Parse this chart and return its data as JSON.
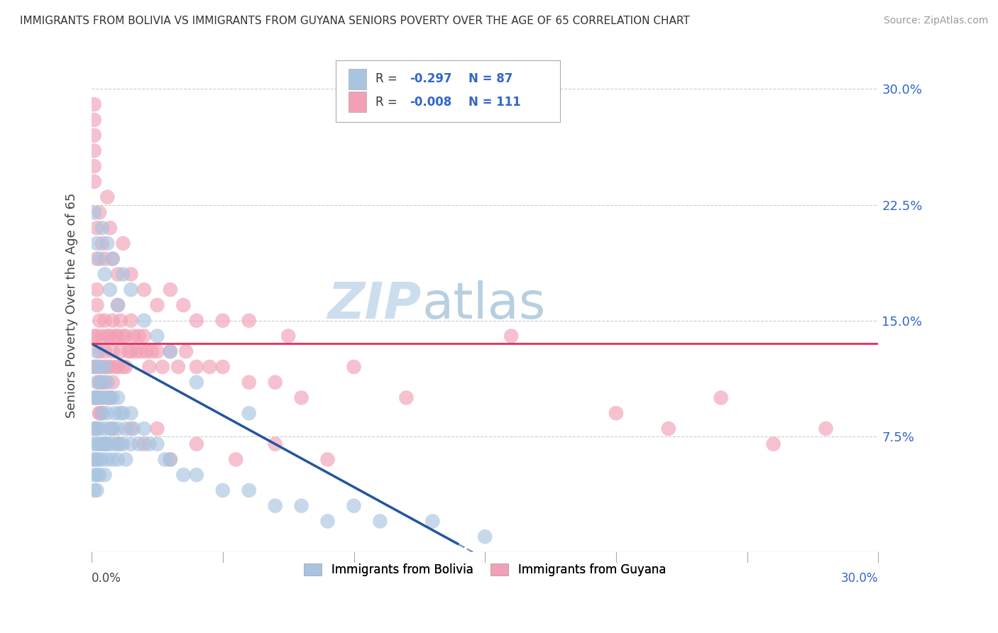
{
  "title": "IMMIGRANTS FROM BOLIVIA VS IMMIGRANTS FROM GUYANA SENIORS POVERTY OVER THE AGE OF 65 CORRELATION CHART",
  "source": "Source: ZipAtlas.com",
  "ylabel": "Seniors Poverty Over the Age of 65",
  "xlim": [
    0.0,
    0.3
  ],
  "ylim": [
    0.0,
    0.32
  ],
  "yticks": [
    0.0,
    0.075,
    0.15,
    0.225,
    0.3
  ],
  "ytick_labels": [
    "",
    "7.5%",
    "15.0%",
    "22.5%",
    "30.0%"
  ],
  "bolivia_R": -0.297,
  "bolivia_N": 87,
  "guyana_R": -0.008,
  "guyana_N": 111,
  "bolivia_color": "#a8c4e0",
  "guyana_color": "#f2a0b5",
  "bolivia_line_color": "#2255a0",
  "guyana_line_color": "#e03060",
  "bolivia_line_start": 0.0,
  "bolivia_line_end": 0.14,
  "bolivia_line_y_start": 0.135,
  "bolivia_line_y_end": 0.005,
  "guyana_line_y_start": 0.135,
  "guyana_line_y_end": 0.135,
  "watermark_color": "#ccdded",
  "bolivia_scatter_x": [
    0.001,
    0.001,
    0.001,
    0.001,
    0.001,
    0.001,
    0.001,
    0.002,
    0.002,
    0.002,
    0.002,
    0.002,
    0.002,
    0.002,
    0.002,
    0.003,
    0.003,
    0.003,
    0.003,
    0.003,
    0.003,
    0.004,
    0.004,
    0.004,
    0.004,
    0.005,
    0.005,
    0.005,
    0.005,
    0.005,
    0.006,
    0.006,
    0.006,
    0.006,
    0.007,
    0.007,
    0.007,
    0.008,
    0.008,
    0.008,
    0.009,
    0.009,
    0.01,
    0.01,
    0.01,
    0.011,
    0.011,
    0.012,
    0.012,
    0.013,
    0.013,
    0.015,
    0.015,
    0.016,
    0.018,
    0.02,
    0.022,
    0.025,
    0.028,
    0.03,
    0.035,
    0.04,
    0.05,
    0.06,
    0.07,
    0.08,
    0.09,
    0.1,
    0.11,
    0.13,
    0.15,
    0.001,
    0.002,
    0.003,
    0.004,
    0.005,
    0.006,
    0.007,
    0.008,
    0.01,
    0.012,
    0.015,
    0.02,
    0.025,
    0.03,
    0.04,
    0.06
  ],
  "bolivia_scatter_y": [
    0.12,
    0.1,
    0.08,
    0.07,
    0.06,
    0.05,
    0.04,
    0.13,
    0.11,
    0.1,
    0.08,
    0.07,
    0.06,
    0.05,
    0.04,
    0.12,
    0.1,
    0.08,
    0.07,
    0.06,
    0.05,
    0.11,
    0.09,
    0.07,
    0.06,
    0.12,
    0.1,
    0.08,
    0.07,
    0.05,
    0.11,
    0.09,
    0.07,
    0.06,
    0.1,
    0.08,
    0.07,
    0.1,
    0.08,
    0.06,
    0.09,
    0.07,
    0.1,
    0.08,
    0.06,
    0.09,
    0.07,
    0.09,
    0.07,
    0.08,
    0.06,
    0.09,
    0.07,
    0.08,
    0.07,
    0.08,
    0.07,
    0.07,
    0.06,
    0.06,
    0.05,
    0.05,
    0.04,
    0.04,
    0.03,
    0.03,
    0.02,
    0.03,
    0.02,
    0.02,
    0.01,
    0.22,
    0.2,
    0.19,
    0.21,
    0.18,
    0.2,
    0.17,
    0.19,
    0.16,
    0.18,
    0.17,
    0.15,
    0.14,
    0.13,
    0.11,
    0.09
  ],
  "guyana_scatter_x": [
    0.001,
    0.001,
    0.001,
    0.001,
    0.001,
    0.002,
    0.002,
    0.002,
    0.002,
    0.003,
    0.003,
    0.003,
    0.003,
    0.004,
    0.004,
    0.004,
    0.005,
    0.005,
    0.005,
    0.006,
    0.006,
    0.006,
    0.007,
    0.007,
    0.007,
    0.008,
    0.008,
    0.008,
    0.009,
    0.009,
    0.01,
    0.01,
    0.01,
    0.011,
    0.011,
    0.012,
    0.012,
    0.013,
    0.013,
    0.014,
    0.015,
    0.015,
    0.016,
    0.017,
    0.018,
    0.019,
    0.02,
    0.021,
    0.022,
    0.023,
    0.025,
    0.027,
    0.03,
    0.033,
    0.036,
    0.04,
    0.045,
    0.05,
    0.06,
    0.07,
    0.08,
    0.1,
    0.12,
    0.002,
    0.003,
    0.004,
    0.005,
    0.006,
    0.007,
    0.008,
    0.01,
    0.012,
    0.015,
    0.02,
    0.025,
    0.03,
    0.035,
    0.04,
    0.05,
    0.06,
    0.075,
    0.002,
    0.003,
    0.005,
    0.008,
    0.01,
    0.015,
    0.02,
    0.025,
    0.03,
    0.04,
    0.055,
    0.07,
    0.09,
    0.16,
    0.2,
    0.22,
    0.24,
    0.26,
    0.28,
    0.001,
    0.001,
    0.001,
    0.001,
    0.001,
    0.001,
    0.002,
    0.002,
    0.003,
    0.004,
    0.005
  ],
  "guyana_scatter_y": [
    0.14,
    0.12,
    0.1,
    0.08,
    0.06,
    0.16,
    0.14,
    0.12,
    0.1,
    0.15,
    0.13,
    0.11,
    0.09,
    0.14,
    0.12,
    0.1,
    0.15,
    0.13,
    0.11,
    0.14,
    0.12,
    0.1,
    0.14,
    0.12,
    0.1,
    0.15,
    0.13,
    0.11,
    0.14,
    0.12,
    0.16,
    0.14,
    0.12,
    0.15,
    0.13,
    0.14,
    0.12,
    0.14,
    0.12,
    0.13,
    0.15,
    0.13,
    0.14,
    0.13,
    0.14,
    0.13,
    0.14,
    0.13,
    0.12,
    0.13,
    0.13,
    0.12,
    0.13,
    0.12,
    0.13,
    0.12,
    0.12,
    0.12,
    0.11,
    0.11,
    0.1,
    0.12,
    0.1,
    0.21,
    0.22,
    0.2,
    0.19,
    0.23,
    0.21,
    0.19,
    0.18,
    0.2,
    0.18,
    0.17,
    0.16,
    0.17,
    0.16,
    0.15,
    0.15,
    0.15,
    0.14,
    0.08,
    0.09,
    0.07,
    0.08,
    0.07,
    0.08,
    0.07,
    0.08,
    0.06,
    0.07,
    0.06,
    0.07,
    0.06,
    0.14,
    0.09,
    0.08,
    0.1,
    0.07,
    0.08,
    0.27,
    0.25,
    0.28,
    0.24,
    0.26,
    0.29,
    0.19,
    0.17,
    0.11,
    0.09,
    0.07
  ]
}
